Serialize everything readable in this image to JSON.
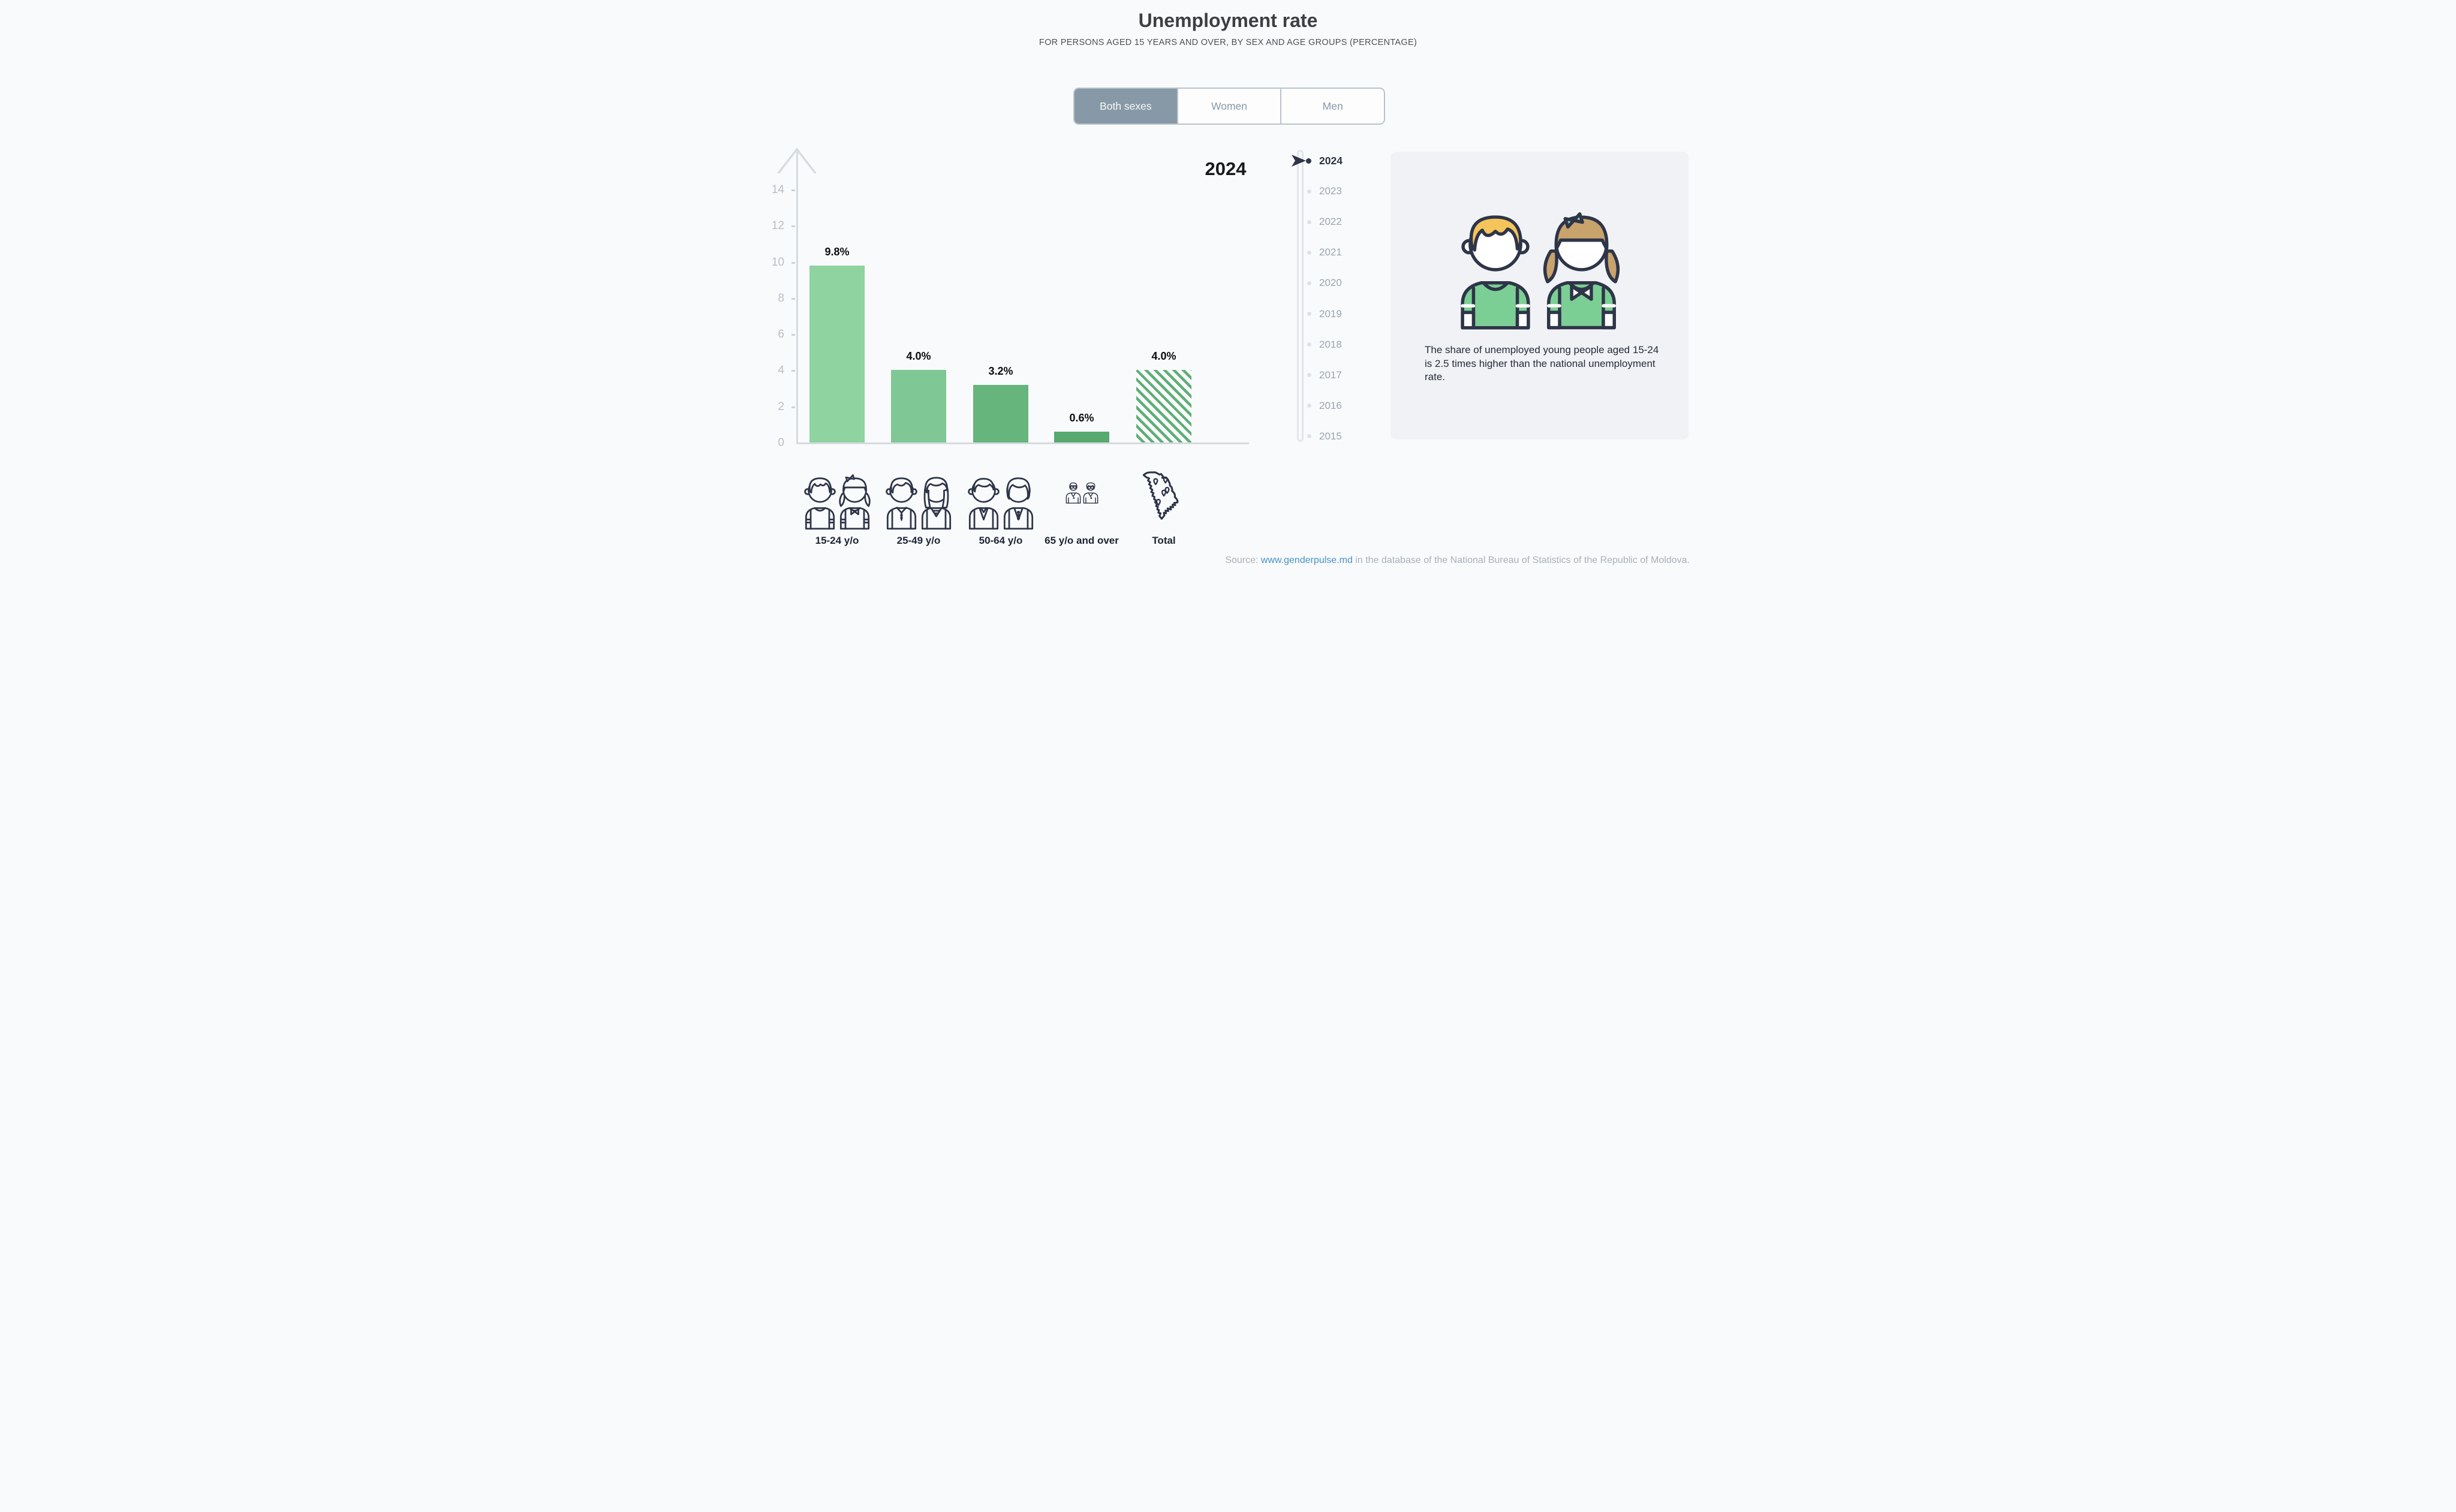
{
  "header": {
    "title": "Unemployment rate",
    "subtitle": "FOR PERSONS AGED 15 YEARS AND OVER, BY SEX AND AGE GROUPS (PERCENTAGE)"
  },
  "tabs": [
    {
      "label": "Both sexes",
      "active": true
    },
    {
      "label": "Women",
      "active": false
    },
    {
      "label": "Men",
      "active": false
    }
  ],
  "chart_data": {
    "type": "bar",
    "title": "2024",
    "categories": [
      "15-24 y/o",
      "25-49 y/o",
      "50-64 y/o",
      "65 y/o and over",
      "Total"
    ],
    "values": [
      9.8,
      4.0,
      3.2,
      0.6,
      4.0
    ],
    "labels": [
      "9.8%",
      "4.0%",
      "3.2%",
      "0.6%",
      "4.0%"
    ],
    "unit": "percent",
    "ylim": [
      0,
      15
    ],
    "yticks": [
      0,
      2,
      4,
      6,
      8,
      10,
      12,
      14
    ],
    "grid": false,
    "bar_colors": [
      "#8FD3A0",
      "#7FC795",
      "#65B57D",
      "#57A96F",
      "hatch"
    ],
    "hatch_color": "#5FAE76",
    "category_icons": [
      "young-pair-icon",
      "adult-pair-icon",
      "mature-pair-icon",
      "elderly-pair-icon",
      "moldova-map-icon"
    ]
  },
  "timeline": {
    "selected": "2024",
    "years": [
      "2024",
      "2023",
      "2022",
      "2021",
      "2020",
      "2019",
      "2018",
      "2017",
      "2016",
      "2015"
    ]
  },
  "info_card": {
    "text": "The share of unemployed young people aged 15-24 is 2.5 times higher than the national unemployment rate."
  },
  "source": {
    "prefix": "Source: ",
    "link": "www.genderpulse.md",
    "suffix": " in the database of the National Bureau of Statistics of the Republic of Moldova."
  },
  "colors": {
    "background": "#F9FAFB",
    "outline_ink": "#2E3548",
    "axis_gray": "#D6DBE0",
    "active_tab": "#8799A7",
    "card_background": "#F0F2F5",
    "shirt_green": "#7CCF94",
    "boy_hair": "#F5C45B",
    "girl_hair": "#C9A36C",
    "bow_green": "#8FD5A2",
    "link_blue": "#4892C8"
  }
}
